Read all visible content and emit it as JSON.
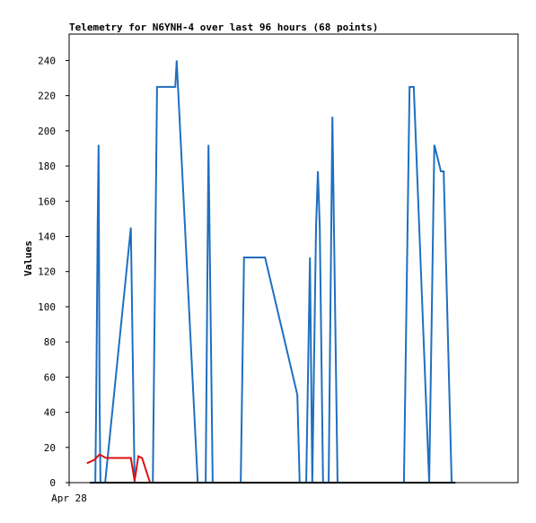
{
  "chart_data": {
    "type": "line",
    "title": "Telemetry for N6YNH-4 over last 96 hours (68 points)",
    "y_label": "Values",
    "xlim": [
      0,
      96
    ],
    "xticks": [
      {
        "value": 0,
        "label": "Apr 28"
      }
    ],
    "ylim": [
      0,
      255
    ],
    "yticks": [
      0,
      20,
      40,
      60,
      80,
      100,
      120,
      140,
      160,
      180,
      200,
      220,
      240
    ],
    "grid": false,
    "series": [
      {
        "color": "#1f6fbf",
        "x": [
          5.6,
          5.8,
          6.1,
          6.3,
          6.5,
          6.7,
          7.7,
          13.2,
          14.0,
          17.9,
          18.8,
          22.7,
          23.0,
          27.5,
          29.2,
          29.8,
          30.7,
          36.7,
          37.4,
          41.9,
          48.8,
          49.3,
          50.7,
          51.5,
          52.0,
          52.8,
          53.2,
          53.6,
          54.3,
          55.5,
          56.3,
          57.4,
          71.6,
          72.8,
          73.7,
          77.0,
          78.1,
          79.5,
          80.1,
          81.8
        ],
        "values": [
          0,
          50,
          145,
          192,
          50,
          0,
          0,
          145,
          0,
          0,
          225,
          225,
          240,
          0,
          0,
          192,
          0,
          0,
          128,
          128,
          50,
          0,
          0,
          128,
          0,
          145,
          177,
          145,
          0,
          0,
          208,
          0,
          0,
          225,
          225,
          0,
          192,
          177,
          177,
          0
        ]
      },
      {
        "color": "#dd1111",
        "x": [
          3.8,
          5.4,
          6.5,
          7.9,
          13.2,
          14.0,
          14.8,
          15.6,
          17.3
        ],
        "values": [
          11,
          13,
          16,
          14,
          14,
          1,
          15,
          14,
          0
        ]
      },
      {
        "color": "#000000",
        "x": [
          4.4,
          82.6
        ],
        "values": [
          0,
          0
        ]
      }
    ]
  }
}
